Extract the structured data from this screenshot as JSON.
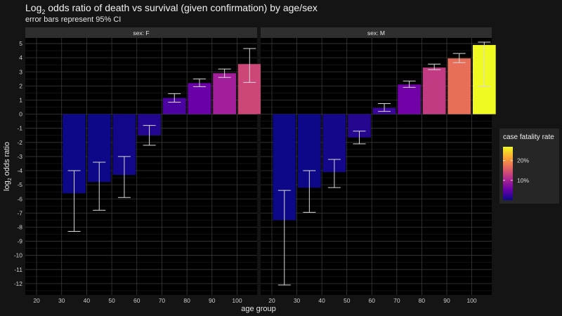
{
  "title_prefix": "Log",
  "title_sub": "2",
  "title_rest": " odds ratio of death vs survival (given confirmation) by age/sex",
  "subtitle": "error bars represent 95% CI",
  "colors": {
    "background": "#141414",
    "panel": "#000000",
    "strip": "#2e2e2e",
    "grid": "#3a3a3a",
    "errorbar": "#d9d9d9",
    "text": "#e6e6e6",
    "legend_bg": "#262626"
  },
  "chart_data": {
    "type": "bar",
    "xlabel": "age group",
    "ylabel_prefix": "log",
    "ylabel_sub": "2",
    "ylabel_rest": " odds ratio",
    "x_ticks": [
      20,
      30,
      40,
      50,
      60,
      70,
      80,
      90,
      100
    ],
    "y_ticks": [
      5,
      4,
      3,
      2,
      1,
      0,
      -1,
      -2,
      -3,
      -4,
      -5,
      -6,
      -7,
      -8,
      -9,
      -10,
      -11,
      -12
    ],
    "ylim": [
      -12.8,
      5.4
    ],
    "xlim": [
      15.5,
      108
    ],
    "facets": [
      {
        "strip": "sex: F",
        "bars": [
          {
            "x": 35,
            "value": -5.6,
            "lo": -8.3,
            "hi": -4.0,
            "color": "#0d0887"
          },
          {
            "x": 45,
            "value": -4.8,
            "lo": -6.8,
            "hi": -3.4,
            "color": "#0d0887"
          },
          {
            "x": 55,
            "value": -4.3,
            "lo": -5.9,
            "hi": -3.0,
            "color": "#120789"
          },
          {
            "x": 65,
            "value": -1.5,
            "lo": -2.2,
            "hi": -0.8,
            "color": "#220690"
          },
          {
            "x": 75,
            "value": 1.15,
            "lo": 0.85,
            "hi": 1.45,
            "color": "#4c02a1"
          },
          {
            "x": 85,
            "value": 2.2,
            "lo": 1.95,
            "hi": 2.5,
            "color": "#6a00a8"
          },
          {
            "x": 95,
            "value": 2.9,
            "lo": 2.6,
            "hi": 3.2,
            "color": "#a31e9a"
          },
          {
            "x": 105,
            "value": 3.55,
            "lo": 2.25,
            "hi": 4.65,
            "color": "#cc4778"
          }
        ]
      },
      {
        "strip": "sex: M",
        "bars": [
          {
            "x": 25,
            "value": -7.5,
            "lo": -12.1,
            "hi": -5.4,
            "color": "#0d0887"
          },
          {
            "x": 35,
            "value": -5.2,
            "lo": -6.95,
            "hi": -4.0,
            "color": "#0d0887"
          },
          {
            "x": 45,
            "value": -4.1,
            "lo": -5.2,
            "hi": -3.2,
            "color": "#140789"
          },
          {
            "x": 55,
            "value": -1.65,
            "lo": -2.1,
            "hi": -1.2,
            "color": "#25068f"
          },
          {
            "x": 65,
            "value": 0.45,
            "lo": 0.2,
            "hi": 0.75,
            "color": "#3b049a"
          },
          {
            "x": 75,
            "value": 2.1,
            "lo": 1.9,
            "hi": 2.35,
            "color": "#7201a8"
          },
          {
            "x": 85,
            "value": 3.3,
            "lo": 3.15,
            "hi": 3.55,
            "color": "#c13b82"
          },
          {
            "x": 95,
            "value": 3.95,
            "lo": 3.65,
            "hi": 4.3,
            "color": "#e76f5a"
          },
          {
            "x": 105,
            "value": 4.9,
            "lo": 1.95,
            "hi": 5.1,
            "color": "#f0f921"
          }
        ]
      }
    ],
    "legend": {
      "title": "case fatality rate",
      "labels": [
        "20%",
        "10%"
      ],
      "label_levels": [
        0.2,
        0.1
      ],
      "range": [
        0,
        0.27
      ],
      "colors": [
        "#0d0887",
        "#6a00a8",
        "#b12a90",
        "#e16462",
        "#fca636",
        "#f0f921"
      ]
    }
  }
}
